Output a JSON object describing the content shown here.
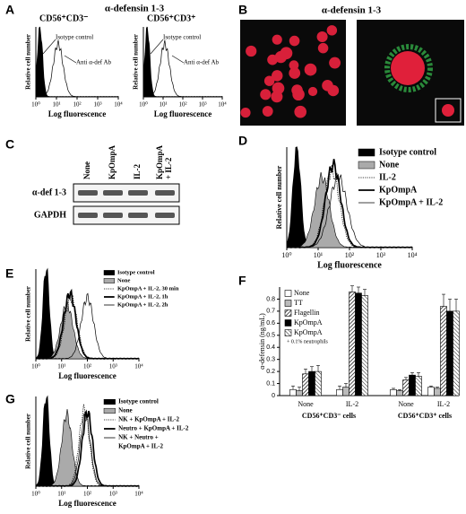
{
  "A": {
    "label": "A",
    "title": "α-defensin 1-3",
    "subsets": [
      "CD56⁺CD3⁻",
      "CD56⁺CD3⁺"
    ],
    "isotype": "Isotype control",
    "antibody": "Anti α-def Ab",
    "y_label": "Relative cell number",
    "x_label": "Log fluorescence",
    "x_ticks": [
      "10⁰",
      "10¹",
      "10²",
      "10³",
      "10⁴"
    ]
  },
  "B": {
    "label": "B",
    "title": "α-defensin 1-3"
  },
  "C": {
    "label": "C",
    "lanes": [
      "None",
      "KpOmpA",
      "IL-2",
      [
        "KpOmpA",
        "+ IL-2"
      ]
    ],
    "rows": [
      "α-def 1-3",
      "GAPDH"
    ]
  },
  "D": {
    "label": "D",
    "legend": [
      "Isotype control",
      "None",
      "IL-2",
      "KpOmpA",
      "KpOmpA + IL-2"
    ],
    "y_label": "Relative cell number",
    "x_label": "Log fluorescence",
    "x_ticks": [
      "10⁰",
      "10¹",
      "10²",
      "10³",
      "10⁴"
    ]
  },
  "E": {
    "label": "E",
    "legend": [
      "Isotype control",
      "None",
      "KpOmpA + IL-2, 30 min",
      "KpOmpA + IL-2, 1h",
      "KpOmpA + IL-2, 2h"
    ],
    "y_label": "Relative cell number",
    "x_label": "Log fluorescence",
    "x_ticks": [
      "10⁰",
      "10¹",
      "10²",
      "10³",
      "10⁴"
    ]
  },
  "G": {
    "label": "G",
    "legend": [
      "Isotype control",
      "None",
      "NK + KpOmpA + IL-2",
      "Neutro + KpOmpA + IL-2",
      [
        "NK + Neutro +",
        "KpOmpA + IL-2"
      ]
    ],
    "y_label": "Relative cell number",
    "x_label": "Log fluorescence",
    "x_ticks": [
      "10⁰",
      "10¹",
      "10²",
      "10³",
      "10⁴"
    ]
  },
  "chart_data": {
    "type": "bar",
    "label": "F",
    "categories": [
      "None",
      "IL-2",
      "None",
      "IL-2"
    ],
    "groups": [
      "CD56⁺CD3⁻ cells",
      "CD56⁺CD3⁺ cells"
    ],
    "ylabel": "α-defensin (ng/mL)",
    "ylim": [
      0,
      0.9
    ],
    "yticks": [
      0,
      0.1,
      0.2,
      0.3,
      0.4,
      0.5,
      0.6,
      0.7,
      0.8
    ],
    "series": [
      {
        "name": "None",
        "color": "#ffffff",
        "values": [
          0.05,
          0.05,
          0.05,
          0.07
        ],
        "errors": [
          0.03,
          0.03,
          0.01,
          0.01
        ]
      },
      {
        "name": "TT",
        "color": "#bbbbbb",
        "values": [
          0.04,
          0.07,
          0.04,
          0.06
        ],
        "errors": [
          0.03,
          0.03,
          0.01,
          0.01
        ]
      },
      {
        "name": "Flagellin",
        "color": "#000000",
        "pattern": "hatch",
        "values": [
          0.18,
          0.86,
          0.13,
          0.74
        ],
        "errors": [
          0.04,
          0.05,
          0.02,
          0.1
        ]
      },
      {
        "name": "KpOmpA",
        "color": "#000000",
        "values": [
          0.2,
          0.85,
          0.17,
          0.7
        ],
        "errors": [
          0.04,
          0.05,
          0.02,
          0.1
        ]
      },
      {
        "name": "KpOmpA",
        "name_line2": "+ 0.1% neutrophils",
        "color": "#000000",
        "pattern": "cross",
        "values": [
          0.2,
          0.83,
          0.16,
          0.7
        ],
        "errors": [
          0.05,
          0.05,
          0.03,
          0.1
        ]
      }
    ]
  }
}
